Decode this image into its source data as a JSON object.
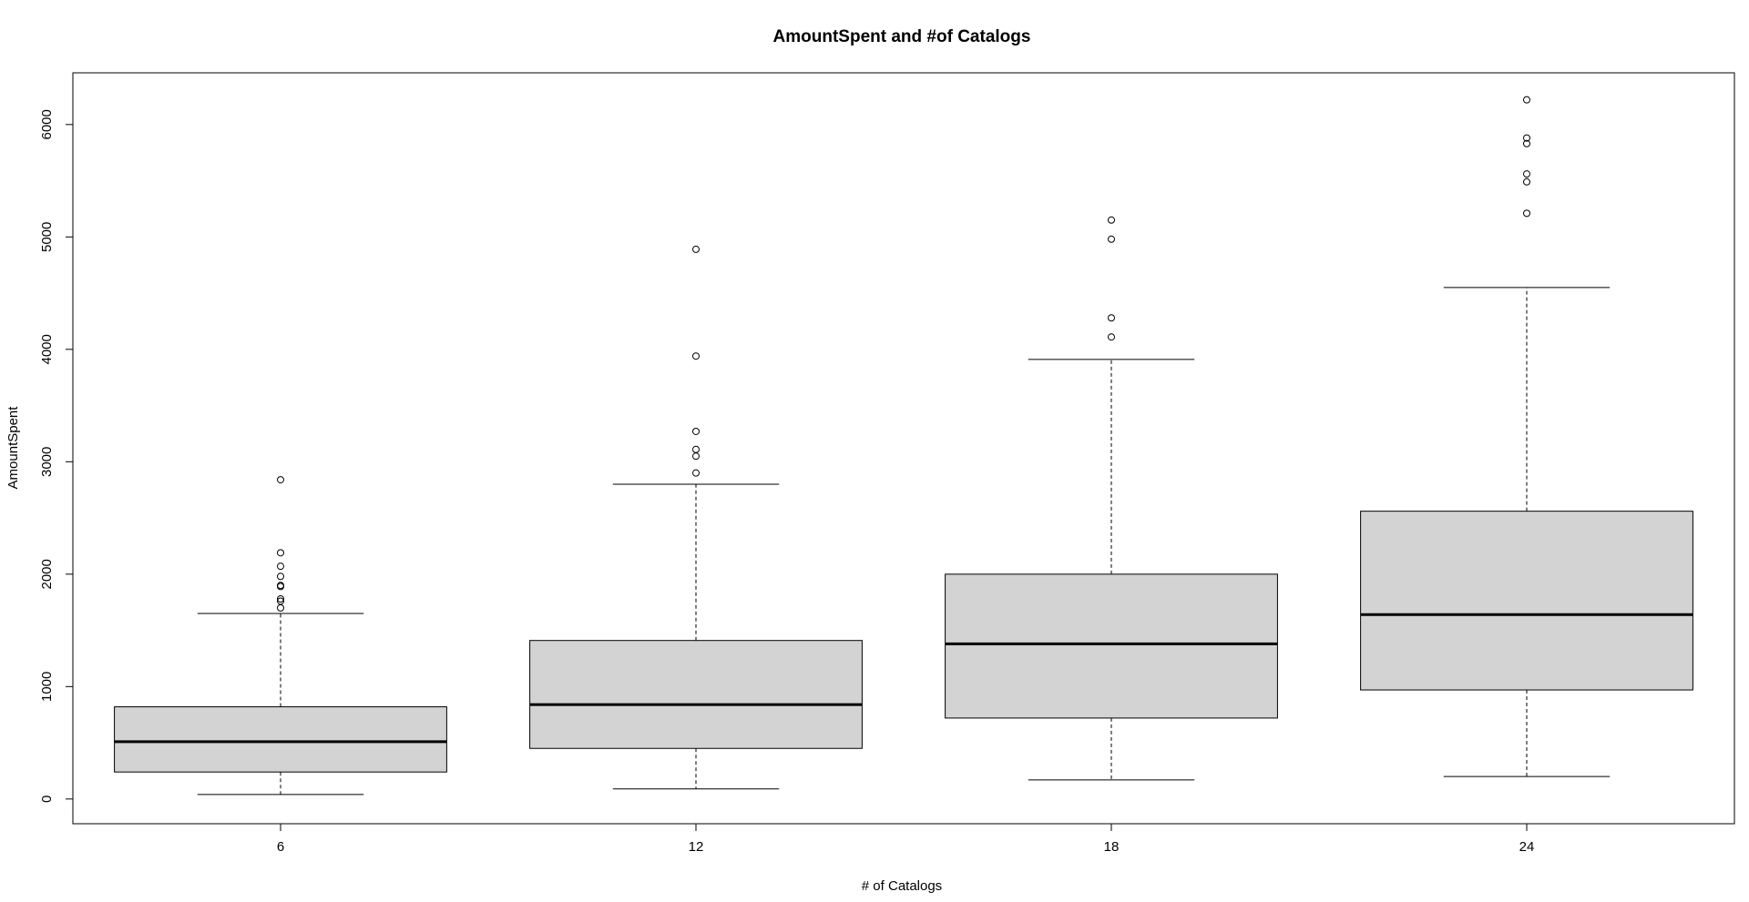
{
  "chart_data": {
    "type": "boxplot",
    "title": "AmountSpent and #of Catalogs",
    "xlabel": "# of Catalogs",
    "ylabel": "AmountSpent",
    "categories": [
      "6",
      "12",
      "18",
      "24"
    ],
    "ylim": [
      -220,
      6460
    ],
    "yticks": [
      0,
      1000,
      2000,
      3000,
      4000,
      5000,
      6000
    ],
    "grid": false,
    "legend": "none",
    "box_fill": "#d3d3d3",
    "boxes": [
      {
        "category": "6",
        "whisker_low": 40,
        "q1": 240,
        "median": 510,
        "q3": 820,
        "whisker_high": 1650,
        "outliers": [
          2840,
          2190,
          2070,
          1980,
          1900,
          1890,
          1780,
          1760,
          1700
        ]
      },
      {
        "category": "12",
        "whisker_low": 90,
        "q1": 450,
        "median": 840,
        "q3": 1410,
        "whisker_high": 2800,
        "outliers": [
          4890,
          3940,
          3270,
          3110,
          3050,
          2900
        ]
      },
      {
        "category": "18",
        "whisker_low": 170,
        "q1": 720,
        "median": 1380,
        "q3": 2000,
        "whisker_high": 3910,
        "outliers": [
          5150,
          4980,
          4280,
          4110
        ]
      },
      {
        "category": "24",
        "whisker_low": 200,
        "q1": 970,
        "median": 1640,
        "q3": 2560,
        "whisker_high": 4550,
        "outliers": [
          6220,
          5880,
          5830,
          5560,
          5490,
          5210
        ]
      }
    ]
  }
}
